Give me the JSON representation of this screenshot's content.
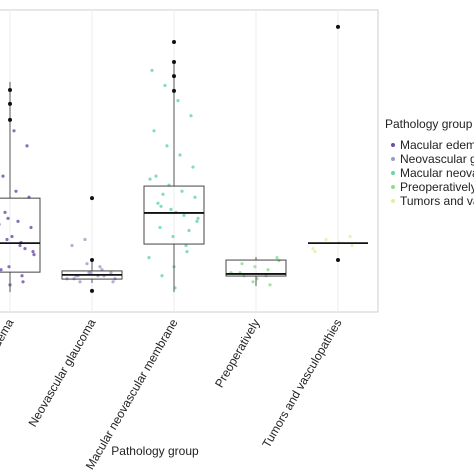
{
  "chart_data": {
    "type": "box",
    "x_label": "Pathology group",
    "legend_title": "Pathology group",
    "categories": [
      "Macular edema",
      "Neovascular glaucoma",
      "Macular neovascular membrane",
      "Preoperatively",
      "Tumors and vasculopathies"
    ],
    "colors": [
      "#6b4ea8",
      "#9a9ad0",
      "#63d6a8",
      "#8fdc8f",
      "#e4eea0"
    ],
    "ylim": [
      0,
      100
    ],
    "boxes": [
      {
        "whisker_low": 6.6,
        "q1": 13.2,
        "median": 22.8,
        "q3": 37.7,
        "whisker_high": 76.2,
        "outliers": [
          73.5,
          68.9,
          63.6
        ]
      },
      {
        "whisker_low": 9.6,
        "q1": 10.9,
        "median": 12.3,
        "q3": 13.6,
        "whisker_high": 16.6,
        "outliers": [
          37.7,
          17.2,
          7.0
        ]
      },
      {
        "whisker_low": 6.6,
        "q1": 22.5,
        "median": 32.8,
        "q3": 41.7,
        "whisker_high": 83.4,
        "outliers": [
          89.4,
          82.8,
          78.1,
          73.2
        ]
      },
      {
        "whisker_low": 8.6,
        "q1": 11.9,
        "median": 12.6,
        "q3": 17.2,
        "whisker_high": 18.2,
        "outliers": []
      },
      {
        "whisker_low": 22.8,
        "q1": 22.8,
        "median": 22.8,
        "q3": 22.8,
        "whisker_high": 22.8,
        "outliers": [
          94.4,
          17.2
        ]
      }
    ],
    "points": [
      [
        8,
        12,
        15,
        18,
        20,
        22,
        24,
        26,
        28,
        30,
        33,
        35,
        38,
        40,
        45,
        50,
        55,
        60,
        14,
        17,
        21,
        25,
        29,
        36,
        10,
        9,
        42,
        19,
        23,
        31
      ],
      [
        10,
        11,
        12,
        13,
        12,
        11,
        14,
        13,
        12,
        10,
        15,
        16,
        11,
        13,
        12,
        24,
        22
      ],
      [
        8,
        12,
        18,
        22,
        25,
        28,
        30,
        32,
        34,
        36,
        38,
        40,
        42,
        45,
        48,
        52,
        55,
        60,
        65,
        70,
        75,
        80,
        27,
        33,
        39,
        44,
        20,
        15,
        35,
        31
      ],
      [
        9,
        11,
        12,
        13,
        14,
        15,
        16,
        17,
        12,
        10,
        13,
        18
      ],
      [
        20,
        22,
        23,
        24,
        21,
        25
      ]
    ]
  }
}
